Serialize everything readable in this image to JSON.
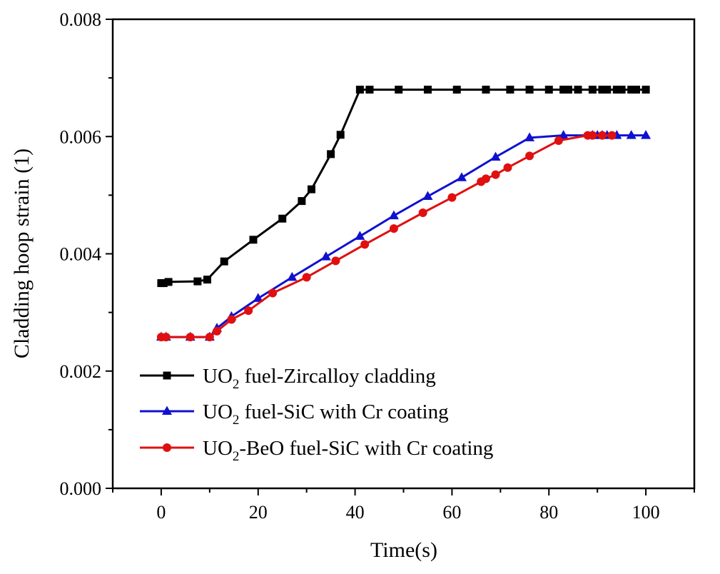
{
  "chart_data": {
    "type": "line",
    "xlabel": "Time(s)",
    "ylabel": "Cladding hoop strain (1)",
    "xlim": [
      -10,
      110
    ],
    "ylim": [
      0,
      0.008
    ],
    "x_ticks": [
      "0",
      "20",
      "40",
      "60",
      "80",
      "100"
    ],
    "y_ticks": [
      "0.000",
      "0.002",
      "0.004",
      "0.006",
      "0.008"
    ],
    "grid": false,
    "legend_position": "bottom-left",
    "series": [
      {
        "name_parts": [
          "UO",
          "2",
          " fuel-Zircalloy cladding"
        ],
        "color": "#000000",
        "marker": "square",
        "x": [
          0,
          0.5,
          1.5,
          7.5,
          9.5,
          13,
          19,
          25,
          29,
          31,
          35,
          37,
          41,
          43,
          49,
          55,
          61,
          67,
          72,
          76,
          80,
          83,
          84,
          86,
          89,
          91,
          92,
          94,
          95,
          97,
          98,
          100
        ],
        "y": [
          0.0035,
          0.0035,
          0.00352,
          0.00353,
          0.00356,
          0.00387,
          0.00424,
          0.0046,
          0.0049,
          0.0051,
          0.0057,
          0.00603,
          0.0068,
          0.0068,
          0.0068,
          0.0068,
          0.0068,
          0.0068,
          0.0068,
          0.0068,
          0.0068,
          0.0068,
          0.0068,
          0.0068,
          0.0068,
          0.0068,
          0.0068,
          0.0068,
          0.0068,
          0.0068,
          0.0068,
          0.0068
        ]
      },
      {
        "name_parts": [
          "UO",
          "2",
          " fuel-SiC with Cr coating"
        ],
        "color": "#1010d0",
        "marker": "triangle",
        "x": [
          0,
          1,
          6,
          10,
          11.5,
          14.5,
          20,
          27,
          34,
          41,
          48,
          55,
          62,
          69,
          76,
          83,
          89,
          90,
          91,
          92,
          94,
          97,
          100
        ],
        "y": [
          0.00258,
          0.00258,
          0.00258,
          0.00258,
          0.00273,
          0.00293,
          0.00324,
          0.0036,
          0.00395,
          0.0043,
          0.00465,
          0.00498,
          0.0053,
          0.00565,
          0.00598,
          0.00602,
          0.00602,
          0.00602,
          0.00602,
          0.00602,
          0.00602,
          0.00602,
          0.00602
        ]
      },
      {
        "name_parts": [
          "UO",
          "2",
          "-BeO fuel-SiC with Cr coating"
        ],
        "color": "#e01010",
        "marker": "circle",
        "x": [
          0,
          1,
          6,
          10,
          11.5,
          14.5,
          18,
          23,
          30,
          36,
          42,
          48,
          54,
          60,
          66,
          67,
          69,
          71.5,
          76,
          82,
          88,
          89,
          91,
          93
        ],
        "y": [
          0.00258,
          0.00258,
          0.00258,
          0.00258,
          0.00268,
          0.00288,
          0.00303,
          0.00333,
          0.0036,
          0.00388,
          0.00416,
          0.00443,
          0.0047,
          0.00496,
          0.00523,
          0.00528,
          0.00535,
          0.00547,
          0.00567,
          0.00593,
          0.00602,
          0.00602,
          0.00602,
          0.00602
        ]
      }
    ]
  }
}
